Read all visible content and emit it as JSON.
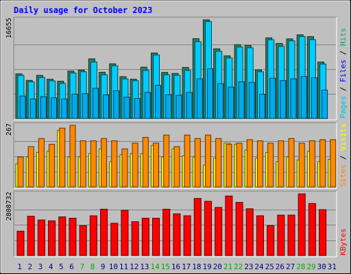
{
  "chart_data": {
    "type": "bar",
    "title": "Daily usage for October 2023",
    "categories": [
      "1",
      "2",
      "3",
      "4",
      "5",
      "6",
      "7",
      "8",
      "9",
      "10",
      "11",
      "12",
      "13",
      "14",
      "15",
      "16",
      "17",
      "18",
      "19",
      "20",
      "21",
      "22",
      "23",
      "24",
      "25",
      "26",
      "27",
      "28",
      "29",
      "30",
      "31"
    ],
    "weekend_days": [
      "7",
      "8",
      "14",
      "15",
      "21",
      "22",
      "28",
      "29"
    ],
    "panels": [
      {
        "name": "top",
        "ymax_label": "16655",
        "ymax": 16655,
        "legend": [
          "Pages",
          "Files",
          "Hits"
        ],
        "series": [
          {
            "name": "Hits",
            "color": "#2b8060",
            "values": [
              7540,
              6440,
              7280,
              6630,
              6300,
              8010,
              8170,
              10070,
              7810,
              9240,
              7070,
              6640,
              8670,
              11060,
              7780,
              7610,
              8620,
              13480,
              16655,
              11770,
              10580,
              12460,
              12350,
              8220,
              13620,
              12680,
              13440,
              14130,
              13830,
              9540,
              0
            ]
          },
          {
            "name": "Files",
            "color": "#00ccff",
            "values": [
              7290,
              6190,
              6930,
              6350,
              5930,
              7680,
              7890,
              9540,
              7390,
              8900,
              6690,
              6380,
              8120,
              10730,
              7390,
              7300,
              8120,
              12970,
              16380,
              11350,
              10230,
              12060,
              11930,
              7890,
              13300,
              12180,
              13110,
              13840,
              13320,
              9180,
              0
            ]
          },
          {
            "name": "Pages",
            "color": "#00aaee",
            "values": [
              3800,
              3300,
              3700,
              3500,
              3300,
              4100,
              4200,
              5100,
              4000,
              4700,
              3600,
              3400,
              4400,
              5600,
              4000,
              3900,
              4400,
              6700,
              8400,
              5900,
              5300,
              6200,
              6100,
              4100,
              6800,
              6400,
              6700,
              7100,
              6900,
              4800,
              0
            ]
          }
        ]
      },
      {
        "name": "middle",
        "ymax_label": "267",
        "ymax": 267,
        "legend": [
          "Sites",
          "Visits"
        ],
        "series": [
          {
            "name": "Visits",
            "color": "#ffff00",
            "values": [
              100,
              130,
              150,
              155,
              245,
              130,
              130,
              145,
              165,
              110,
              140,
              145,
              145,
              180,
              130,
              165,
              135,
              130,
              95,
              125,
              190,
              185,
              160,
              125,
              150,
              110,
              130,
              117,
              155,
              110,
              120
            ]
          },
          {
            "name": "Sites",
            "color": "#ff8800",
            "values": [
              130,
              175,
              210,
              185,
              255,
              267,
              200,
              200,
              210,
              200,
              165,
              190,
              215,
              190,
              225,
              175,
              225,
              210,
              225,
              210,
              185,
              190,
              205,
              200,
              190,
              200,
              210,
              190,
              200,
              205,
              205
            ]
          }
        ]
      },
      {
        "name": "bottom",
        "ymax_label": "2808732",
        "ymax": 2808732,
        "legend": [
          "KBytes"
        ],
        "series": [
          {
            "name": "KBytes",
            "color": "#ff0000",
            "values": [
              1110000,
              1790000,
              1620000,
              1580000,
              1760000,
              1700000,
              1360000,
              1810000,
              2110000,
              1470000,
              2060000,
              1540000,
              1700000,
              1700000,
              2110000,
              1900000,
              1810000,
              2600000,
              2470000,
              2190000,
              2710000,
              2420000,
              2130000,
              1810000,
              1360000,
              1840000,
              1840000,
              2808732,
              2370000,
              2090000,
              0
            ]
          }
        ]
      }
    ]
  },
  "colors": {
    "background": "#c0c0c0",
    "panel": "#bfbfbf",
    "title": "#0000ff",
    "weekday_label": "#000080",
    "weekend_label": "#00aa00",
    "legend_pages": "#00c0e0",
    "legend_files": "#0000ff",
    "legend_hits": "#00aa66",
    "legend_sites": "#ff8800",
    "legend_visits": "#ffff00",
    "legend_kbytes": "#ff0000"
  }
}
